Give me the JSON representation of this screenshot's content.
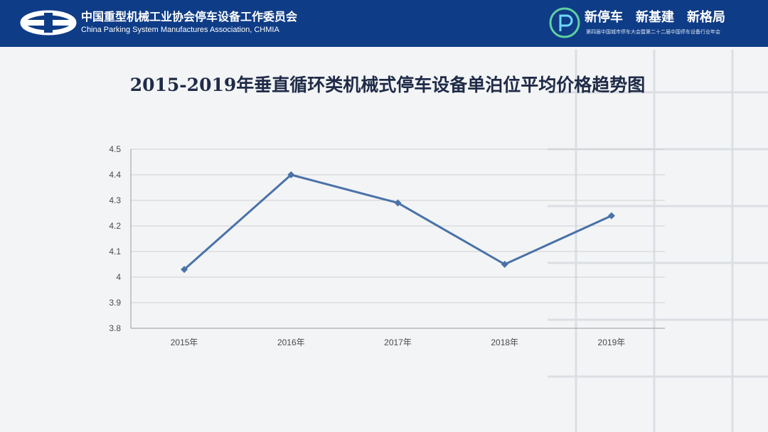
{
  "header": {
    "org_name_cn": "中国重型机械工业协会停车设备工作委员会",
    "org_name_en": "China Parking System Manufactures Association, CHMIA",
    "slogans": [
      "新停车",
      "新基建",
      "新格局"
    ],
    "subline": "第四届中国城市停车大会暨第二十二届中国停车设备行业年会"
  },
  "colors": {
    "header_bg": "#0f3c86",
    "series": "#4a72a8",
    "grid": "#d0d0d0"
  },
  "chart_data": {
    "type": "line",
    "title": "2015-2019年垂直循环类机械式停车设备单泊位平均价格趋势图",
    "categories": [
      "2015年",
      "2016年",
      "2017年",
      "2018年",
      "2019年"
    ],
    "series": [
      {
        "values": [
          4.03,
          4.4,
          4.29,
          4.05,
          4.24
        ]
      }
    ],
    "y_ticks": [
      "3.8",
      "3.9",
      "4",
      "4.1",
      "4.2",
      "4.3",
      "4.4",
      "4.5"
    ],
    "ylim": [
      3.8,
      4.5
    ],
    "grid": true,
    "marker": "diamond"
  }
}
